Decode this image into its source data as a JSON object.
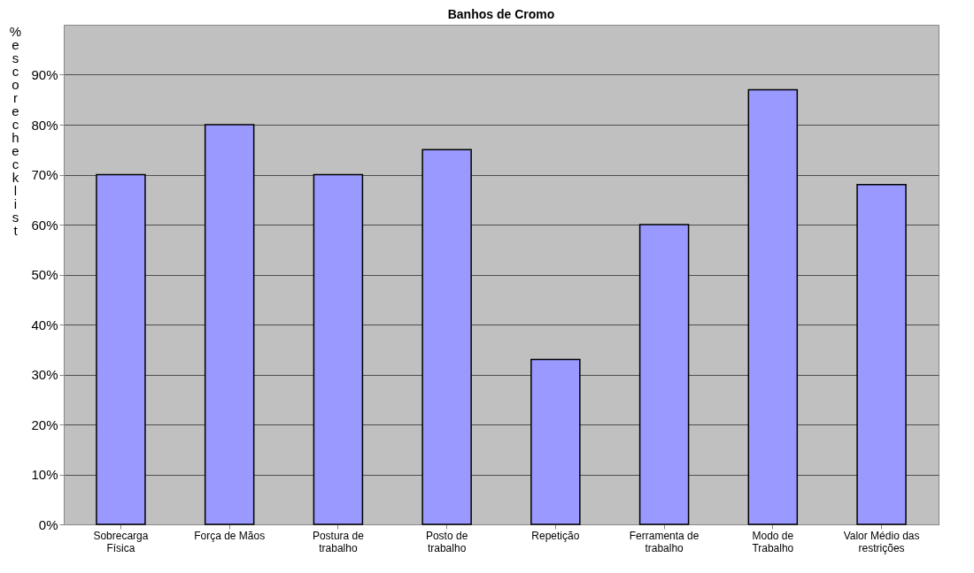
{
  "chart_data": {
    "type": "bar",
    "title": "Banhos de Cromo",
    "ylabel": "% escore checklist",
    "categories": [
      "Sobrecarga Física",
      "Força de Mãos",
      "Postura de trabalho",
      "Posto de trabalho",
      "Repetição",
      "Ferramenta de trabalho",
      "Modo de Trabalho",
      "Valor Médio das restrições"
    ],
    "values": [
      70,
      80,
      70,
      75,
      33,
      60,
      87,
      68
    ],
    "color": "#9999ff",
    "ylim": [
      0,
      100
    ],
    "yticks": [
      {
        "value": 0,
        "label": "0%"
      },
      {
        "value": 10,
        "label": "10%"
      },
      {
        "value": 20,
        "label": "20%"
      },
      {
        "value": 30,
        "label": "30%"
      },
      {
        "value": 40,
        "label": "40%"
      },
      {
        "value": 50,
        "label": "50%"
      },
      {
        "value": 60,
        "label": "60%"
      },
      {
        "value": 70,
        "label": "70%"
      },
      {
        "value": 80,
        "label": "80%"
      },
      {
        "value": 90,
        "label": "90%"
      }
    ],
    "grid": "y"
  }
}
